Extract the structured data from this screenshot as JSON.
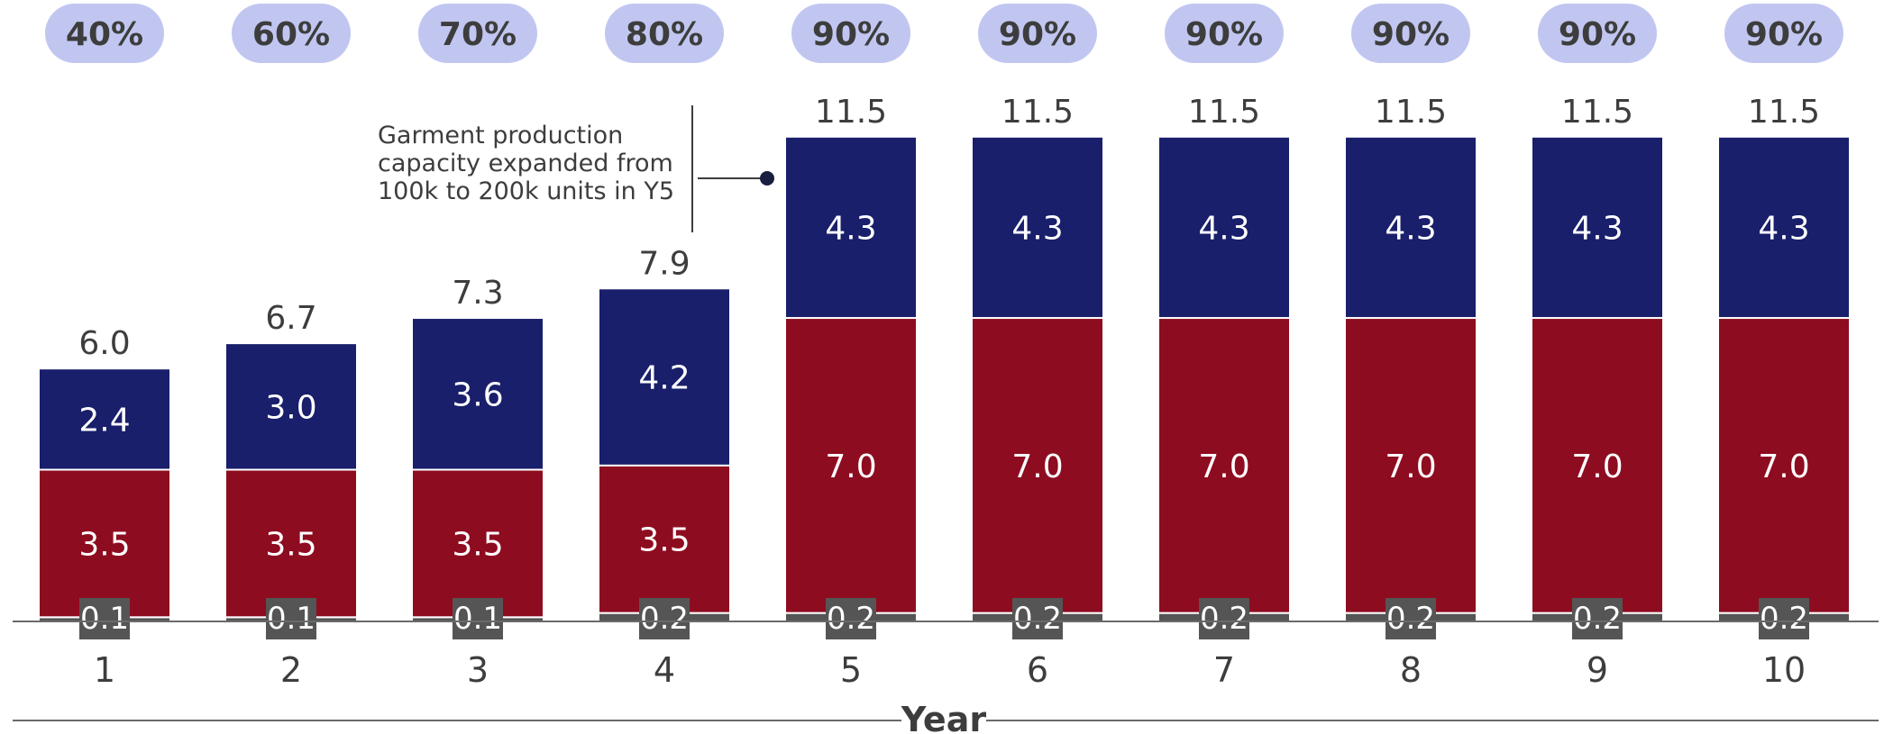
{
  "chart_data": {
    "type": "bar",
    "stacked": true,
    "xlabel": "Year",
    "categories": [
      "1",
      "2",
      "3",
      "4",
      "5",
      "6",
      "7",
      "8",
      "9",
      "10"
    ],
    "utilization": [
      "40%",
      "60%",
      "70%",
      "80%",
      "90%",
      "90%",
      "90%",
      "90%",
      "90%",
      "90%"
    ],
    "series": [
      {
        "values": [
          0.1,
          0.1,
          0.1,
          0.2,
          0.2,
          0.2,
          0.2,
          0.2,
          0.2,
          0.2
        ],
        "color": "#555555"
      },
      {
        "values": [
          3.5,
          3.5,
          3.5,
          3.5,
          7.0,
          7.0,
          7.0,
          7.0,
          7.0,
          7.0
        ],
        "color": "#8e0c20"
      },
      {
        "values": [
          2.4,
          3.0,
          3.6,
          4.2,
          4.3,
          4.3,
          4.3,
          4.3,
          4.3,
          4.3
        ],
        "color": "#191f6b"
      }
    ],
    "totals": [
      6.0,
      6.7,
      7.3,
      7.9,
      11.5,
      11.5,
      11.5,
      11.5,
      11.5,
      11.5
    ],
    "annotation": {
      "lines": [
        "Garment production",
        "capacity expanded from",
        "100k to 200k units in Y5"
      ],
      "target_category": "5"
    },
    "pill_color": "#c1c6f1",
    "grid": false
  }
}
